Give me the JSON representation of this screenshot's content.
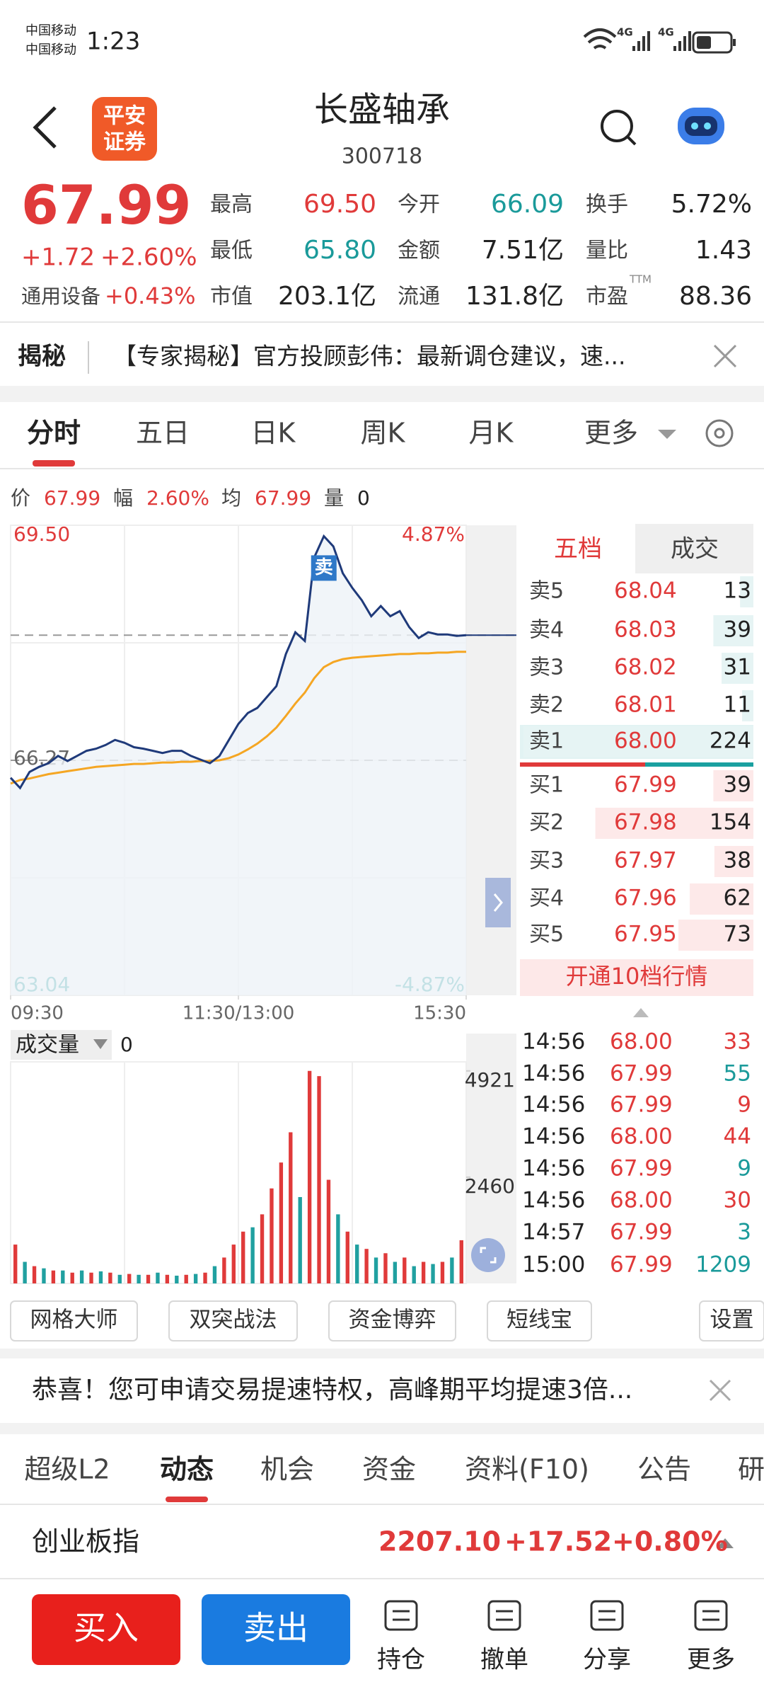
{
  "status": {
    "carrier": [
      "中国移动",
      "中国移动"
    ],
    "time": "1:23",
    "network": [
      "4G",
      "4G"
    ]
  },
  "header": {
    "logo": [
      "平安",
      "证券"
    ],
    "title": "长盛轴承",
    "code": "300718"
  },
  "quote": {
    "price": "67.99",
    "change": "+1.72",
    "change_pct": "+2.60%",
    "sector": "通用设备",
    "sector_pct": "+0.43%",
    "ttm": "TTM",
    "stats": [
      {
        "label": "最高",
        "value": "69.50",
        "color": "#e03a3a"
      },
      {
        "label": "今开",
        "value": "66.09",
        "color": "#1a9a9a"
      },
      {
        "label": "换手",
        "value": "5.72%",
        "color": "#222222"
      },
      {
        "label": "最低",
        "value": "65.80",
        "color": "#1a9a9a"
      },
      {
        "label": "金额",
        "value": "7.51亿",
        "color": "#222222"
      },
      {
        "label": "量比",
        "value": "1.43",
        "color": "#222222"
      },
      {
        "label": "市值",
        "value": "203.1亿",
        "color": "#222222"
      },
      {
        "label": "流通",
        "value": "131.8亿",
        "color": "#222222"
      },
      {
        "label": "市盈",
        "value": "88.36",
        "color": "#222222"
      }
    ]
  },
  "banner": {
    "tag": "揭秘",
    "text": "【专家揭秘】官方投顾彭伟：最新调仓建议，速..."
  },
  "tabs": {
    "items": [
      "分时",
      "五日",
      "日K",
      "周K",
      "月K",
      "更多"
    ],
    "active": 0
  },
  "info": {
    "items": [
      {
        "label": "价",
        "value": "67.99"
      },
      {
        "label": "幅",
        "value": "2.60%"
      },
      {
        "label": "均",
        "value": "67.99"
      },
      {
        "label": "量",
        "value": "0"
      }
    ]
  },
  "order_book": {
    "tabs": [
      "五档",
      "成交"
    ],
    "asks": [
      {
        "name": "卖5",
        "price": "68.04",
        "volume": 13
      },
      {
        "name": "卖4",
        "price": "68.03",
        "volume": 39
      },
      {
        "name": "卖3",
        "price": "68.02",
        "volume": 31
      },
      {
        "name": "卖2",
        "price": "68.01",
        "volume": 11
      },
      {
        "name": "卖1",
        "price": "68.00",
        "volume": 224
      }
    ],
    "bids": [
      {
        "name": "买1",
        "price": "67.99",
        "volume": 39
      },
      {
        "name": "买2",
        "price": "67.98",
        "volume": 154
      },
      {
        "name": "买3",
        "price": "67.97",
        "volume": 38
      },
      {
        "name": "买4",
        "price": "67.96",
        "volume": 62
      },
      {
        "name": "买5",
        "price": "67.95",
        "volume": 73
      }
    ],
    "button": "开通10档行情"
  },
  "trades": [
    {
      "time": "14:56",
      "price": "68.00",
      "volume": "33",
      "color": "#e03a3a"
    },
    {
      "time": "14:56",
      "price": "67.99",
      "volume": "55",
      "color": "#1a9a9a"
    },
    {
      "time": "14:56",
      "price": "67.99",
      "volume": "9",
      "color": "#e03a3a"
    },
    {
      "time": "14:56",
      "price": "68.00",
      "volume": "44",
      "color": "#e03a3a"
    },
    {
      "time": "14:56",
      "price": "67.99",
      "volume": "9",
      "color": "#1a9a9a"
    },
    {
      "time": "14:56",
      "price": "68.00",
      "volume": "30",
      "color": "#e03a3a"
    },
    {
      "time": "14:57",
      "price": "67.99",
      "volume": "3",
      "color": "#1a9a9a"
    },
    {
      "time": "15:00",
      "price": "67.99",
      "volume": "1209",
      "color": "#1a9a9a"
    }
  ],
  "volume_label": {
    "name": "成交量",
    "value": "0"
  },
  "tools": [
    "网格大师",
    "双突战法",
    "资金博弈",
    "短线宝",
    "设置"
  ],
  "notice": "恭喜！您可申请交易提速特权，高峰期平均提速3倍...",
  "tabs2": {
    "items": [
      "超级L2",
      "动态",
      "机会",
      "资金",
      "资料(F10)",
      "公告",
      "研"
    ],
    "active": 1
  },
  "index": {
    "name": "创业板指",
    "value": "2207.10",
    "change": "+17.52",
    "change_pct": "+0.80%"
  },
  "actions": {
    "buy": "买入",
    "sell": "卖出",
    "items": [
      "持仓",
      "撤单",
      "分享",
      "更多"
    ]
  },
  "chart_data": [
    {
      "type": "line",
      "x": [
        0,
        5,
        10,
        15,
        20,
        25,
        30,
        35,
        40,
        45,
        50,
        55,
        60,
        65,
        70,
        75,
        80,
        85,
        90,
        95,
        100,
        105,
        110,
        115,
        120,
        125,
        130,
        135,
        140,
        145,
        150,
        155,
        160,
        165,
        170,
        175,
        180,
        185,
        190,
        195,
        200,
        205,
        210,
        215,
        220,
        225,
        230,
        235,
        240
      ],
      "xlim": [
        0,
        240
      ],
      "xticks": [
        {
          "value": 0,
          "label": "09:30"
        },
        {
          "value": 120,
          "label": "11:30/13:00"
        },
        {
          "value": 240,
          "label": "15:30"
        }
      ],
      "ylim": [
        63.04,
        69.5
      ],
      "yticks": [
        {
          "value": 69.5,
          "label": "69.50"
        },
        66.27,
        63.04
      ],
      "y2lim": [
        -4.87,
        4.87
      ],
      "y2ticks": [
        {
          "value": 4.87,
          "label": "4.87%"
        },
        {
          "value": -4.87,
          "label": "-4.87%"
        }
      ],
      "current_price": 67.99,
      "marker": {
        "label": "卖",
        "x": 165,
        "y": 69.35
      },
      "series": [
        {
          "color": "#1f3a7a",
          "values": [
            66.03,
            65.89,
            66.11,
            66.18,
            66.23,
            66.33,
            66.26,
            66.33,
            66.4,
            66.43,
            66.48,
            66.55,
            66.51,
            66.45,
            66.43,
            66.4,
            66.37,
            66.4,
            66.4,
            66.33,
            66.28,
            66.23,
            66.33,
            66.55,
            66.77,
            66.92,
            66.99,
            67.14,
            67.29,
            67.73,
            68.03,
            67.91,
            69.06,
            69.35,
            69.21,
            68.84,
            68.64,
            68.47,
            68.25,
            68.39,
            68.25,
            68.32,
            68.1,
            67.95,
            68.03,
            68.0,
            68.0,
            67.98,
            67.99
          ]
        },
        {
          "color": "#f5a623",
          "values": [
            65.95,
            66.0,
            66.02,
            66.05,
            66.08,
            66.1,
            66.12,
            66.14,
            66.16,
            66.18,
            66.19,
            66.2,
            66.21,
            66.22,
            66.22,
            66.23,
            66.24,
            66.24,
            66.25,
            66.25,
            66.26,
            66.26,
            66.27,
            66.3,
            66.35,
            66.42,
            66.5,
            66.6,
            66.72,
            66.88,
            67.05,
            67.2,
            67.4,
            67.55,
            67.62,
            67.66,
            67.68,
            67.69,
            67.7,
            67.71,
            67.72,
            67.73,
            67.73,
            67.74,
            67.74,
            67.75,
            67.75,
            67.76,
            67.76
          ]
        }
      ]
    },
    {
      "type": "bar",
      "x": [
        2.5,
        7.5,
        12.5,
        17.5,
        22.5,
        27.5,
        32.5,
        37.5,
        42.5,
        47.5,
        52.5,
        57.5,
        62.5,
        67.5,
        72.5,
        77.5,
        82.5,
        87.5,
        92.5,
        97.5,
        102.5,
        107.5,
        112.5,
        117.5,
        122.5,
        127.5,
        132.5,
        137.5,
        142.5,
        147.5,
        152.5,
        157.5,
        162.5,
        167.5,
        172.5,
        177.5,
        182.5,
        187.5,
        192.5,
        197.5,
        202.5,
        207.5,
        212.5,
        217.5,
        222.5,
        227.5,
        232.5,
        237.5
      ],
      "xlim": [
        0,
        240
      ],
      "ylim": [
        0,
        5130
      ],
      "yticks": [
        2460,
        4921
      ],
      "values": [
        900,
        500,
        400,
        350,
        300,
        300,
        250,
        300,
        250,
        280,
        250,
        200,
        220,
        200,
        200,
        250,
        200,
        180,
        200,
        220,
        250,
        400,
        600,
        900,
        1200,
        1300,
        1600,
        2200,
        2800,
        3500,
        2000,
        4921,
        4800,
        2400,
        1600,
        1200,
        900,
        800,
        600,
        700,
        500,
        600,
        400,
        500,
        450,
        500,
        600,
        1000
      ],
      "colors": [
        "#e03a3a",
        "#20a0a0",
        "#e03a3a",
        "#20a0a0",
        "#e03a3a",
        "#20a0a0",
        "#e03a3a",
        "#20a0a0",
        "#e03a3a",
        "#20a0a0",
        "#e03a3a",
        "#20a0a0",
        "#e03a3a",
        "#20a0a0",
        "#e03a3a",
        "#20a0a0",
        "#e03a3a",
        "#20a0a0",
        "#e03a3a",
        "#20a0a0",
        "#e03a3a",
        "#20a0a0",
        "#e03a3a",
        "#e03a3a",
        "#e03a3a",
        "#20a0a0",
        "#e03a3a",
        "#e03a3a",
        "#e03a3a",
        "#e03a3a",
        "#20a0a0",
        "#e03a3a",
        "#e03a3a",
        "#e03a3a",
        "#20a0a0",
        "#e03a3a",
        "#20a0a0",
        "#e03a3a",
        "#20a0a0",
        "#e03a3a",
        "#20a0a0",
        "#e03a3a",
        "#20a0a0",
        "#e03a3a",
        "#20a0a0",
        "#e03a3a",
        "#20a0a0",
        "#e03a3a"
      ]
    }
  ]
}
